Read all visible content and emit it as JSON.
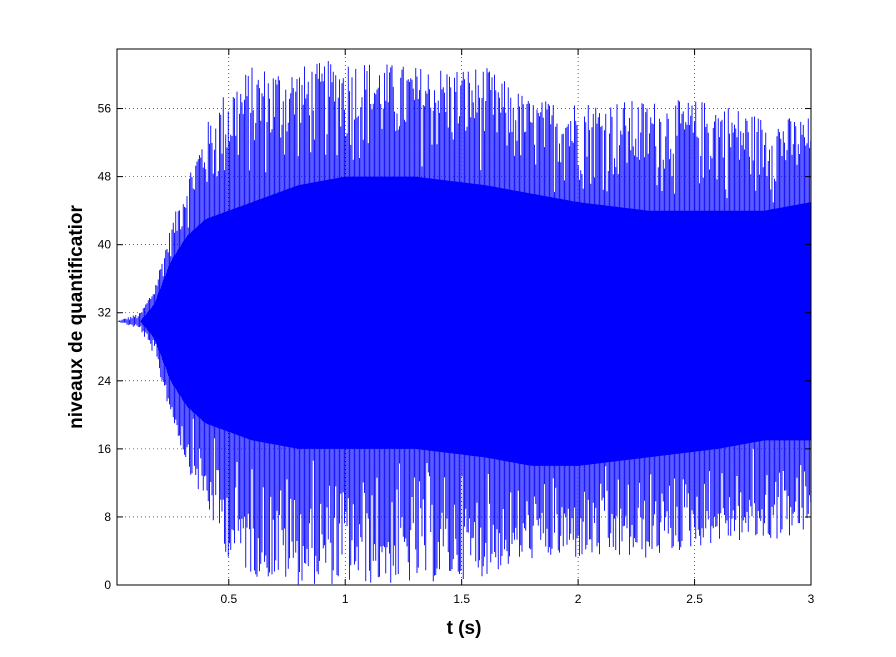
{
  "chart_data": {
    "type": "line",
    "title": "",
    "xlabel": "t (s)",
    "ylabel": "niveaux de quantificatior",
    "xlim": [
      0.02,
      3
    ],
    "ylim": [
      0,
      63
    ],
    "xticks": [
      0.5,
      1,
      1.5,
      2,
      2.5,
      3
    ],
    "xtick_labels": [
      "0.5",
      "1",
      "1.5",
      "2",
      "2.5",
      "3"
    ],
    "yticks": [
      0,
      8,
      16,
      24,
      32,
      40,
      48,
      56
    ],
    "ytick_labels": [
      "0",
      "8",
      "16",
      "24",
      "32",
      "40",
      "48",
      "56"
    ],
    "grid": true,
    "color": "#0000ff",
    "series": [
      {
        "description": "oscillating quantized signal centered near level 31; amplitude grows from ~0.15 s to ~0.6 s then stays roughly constant",
        "envelope": {
          "t": [
            0.02,
            0.12,
            0.18,
            0.25,
            0.32,
            0.4,
            0.5,
            0.6,
            0.8,
            1.0,
            1.3,
            1.6,
            1.8,
            2.0,
            2.3,
            2.6,
            2.8,
            3.0
          ],
          "outer_max": [
            31,
            32,
            35,
            42,
            48,
            54,
            59,
            61,
            61,
            62,
            61,
            61,
            57,
            57,
            57,
            57,
            55,
            55
          ],
          "outer_min": [
            31,
            30,
            27,
            20,
            14,
            9,
            3,
            1,
            0,
            0,
            0,
            1,
            3,
            3,
            3,
            5,
            5,
            6
          ],
          "inner_max": [
            31,
            31,
            33,
            38,
            41,
            43,
            44,
            45,
            47,
            48,
            48,
            47,
            46,
            45,
            44,
            44,
            44,
            45
          ],
          "inner_min": [
            31,
            31,
            29,
            24,
            21,
            19,
            18,
            17,
            16,
            16,
            16,
            15,
            14,
            14,
            15,
            16,
            17,
            17
          ]
        }
      }
    ]
  }
}
